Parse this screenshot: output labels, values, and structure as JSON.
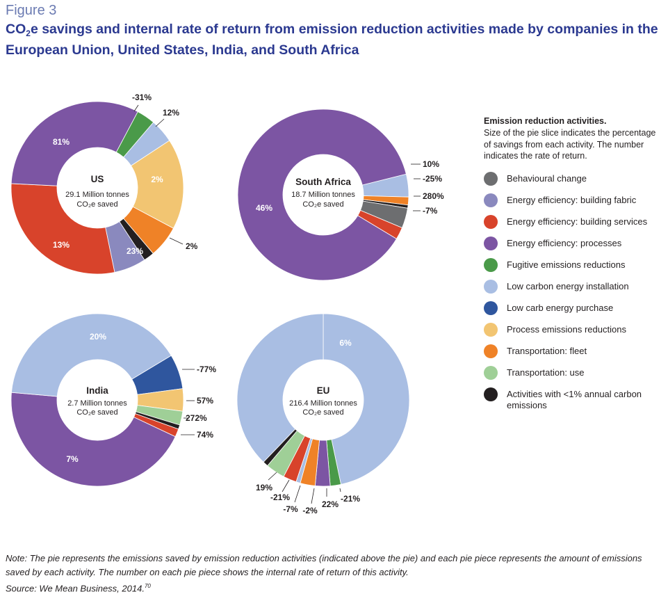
{
  "figure_label": "Figure 3",
  "title": {
    "prefix": "CO",
    "subscript": "2",
    "rest": "e savings and internal rate of return from emission reduction activities made by companies in the European Union, United States, India, and South Africa"
  },
  "legend": {
    "heading": "Emission reduction activities.",
    "description": "Size of the pie slice indicates the percentage of savings from each activity. The number indicates the rate of return.",
    "items": [
      {
        "key": "behavioural",
        "label": "Behavioural change",
        "color": "#6d6e70"
      },
      {
        "key": "building_fabric",
        "label": "Energy efficiency: building fabric",
        "color": "#8a89be"
      },
      {
        "key": "building_services",
        "label": "Energy efficiency: building services",
        "color": "#d8432b"
      },
      {
        "key": "processes",
        "label": "Energy efficiency: processes",
        "color": "#7c55a3"
      },
      {
        "key": "fugitive",
        "label": "Fugitive emissions reductions",
        "color": "#4a9a49"
      },
      {
        "key": "low_carbon_install",
        "label": "Low carbon energy installation",
        "color": "#a9bee3"
      },
      {
        "key": "low_carb_purchase",
        "label": "Low carb energy purchase",
        "color": "#2f569e"
      },
      {
        "key": "process_emissions",
        "label": "Process emissions reductions",
        "color": "#f2c572"
      },
      {
        "key": "fleet",
        "label": "Transportation: fleet",
        "color": "#ef8227"
      },
      {
        "key": "transport_use",
        "label": "Transportation: use",
        "color": "#9fcf97"
      },
      {
        "key": "lt1",
        "label": "Activities with <1% annual carbon emissions",
        "color": "#231f20"
      }
    ]
  },
  "chart_data": [
    {
      "type": "pie",
      "name": "US",
      "center_label": "US",
      "subtitle_line1": "29.1 Million tonnes",
      "subtitle_line2": "CO₂e saved",
      "slices": [
        {
          "category": "fugitive",
          "share": 3.5,
          "irr_label": "-31%"
        },
        {
          "category": "low_carbon_install",
          "share": 4.5,
          "irr_label": "12%"
        },
        {
          "category": "process_emissions",
          "share": 17,
          "irr_label": "2%"
        },
        {
          "category": "fleet",
          "share": 6,
          "irr_label": "2%"
        },
        {
          "category": "lt1",
          "share": 2,
          "irr_label": ""
        },
        {
          "category": "building_fabric",
          "share": 6,
          "irr_label": "23%"
        },
        {
          "category": "building_services",
          "share": 29,
          "irr_label": "13%"
        },
        {
          "category": "processes",
          "share": 32,
          "irr_label": "81%"
        }
      ]
    },
    {
      "type": "pie",
      "name": "South Africa",
      "center_label": "South Africa",
      "subtitle_line1": "18.7 Million tonnes",
      "subtitle_line2": "CO₂e saved",
      "slices": [
        {
          "category": "low_carbon_install",
          "share": 4.3,
          "irr_label": "10%"
        },
        {
          "category": "fleet",
          "share": 1.5,
          "irr_label": "-25%"
        },
        {
          "category": "lt1",
          "share": 0.6,
          "irr_label": ""
        },
        {
          "category": "behavioural",
          "share": 3.8,
          "irr_label": "280%"
        },
        {
          "category": "building_services",
          "share": 2.3,
          "irr_label": "-7%"
        },
        {
          "category": "processes",
          "share": 87.5,
          "irr_label": "46%"
        }
      ]
    },
    {
      "type": "pie",
      "name": "India",
      "center_label": "India",
      "subtitle_line1": "2.7 Million tonnes",
      "subtitle_line2": "CO₂e saved",
      "slices": [
        {
          "category": "low_carb_purchase",
          "share": 6.5,
          "irr_label": "-77%"
        },
        {
          "category": "process_emissions",
          "share": 4.2,
          "irr_label": "57%"
        },
        {
          "category": "transport_use",
          "share": 2.6,
          "irr_label": "272%"
        },
        {
          "category": "lt1",
          "share": 0.8,
          "irr_label": ""
        },
        {
          "category": "building_services",
          "share": 1.5,
          "irr_label": "74%"
        },
        {
          "category": "processes",
          "share": 44.4,
          "irr_label": "7%"
        },
        {
          "category": "low_carbon_install",
          "share": 40,
          "irr_label": "20%"
        }
      ]
    },
    {
      "type": "pie",
      "name": "EU",
      "center_label": "EU",
      "subtitle_line1": "216.4 Million tonnes",
      "subtitle_line2": "CO₂e saved",
      "slices": [
        {
          "category": "low_carbon_install",
          "share": 46.7,
          "irr_label": "6%"
        },
        {
          "category": "fugitive",
          "share": 2,
          "irr_label": "-21%"
        },
        {
          "category": "processes",
          "share": 2.8,
          "irr_label": "22%"
        },
        {
          "category": "fleet",
          "share": 2.8,
          "irr_label": "-2%"
        },
        {
          "category": "low_carbon_install",
          "share": 0.8,
          "irr_label": ""
        },
        {
          "category": "building_services",
          "share": 2.5,
          "irr_label": "-7%"
        },
        {
          "category": "transport_use",
          "share": 3.6,
          "irr_label": "-21%"
        },
        {
          "category": "lt1",
          "share": 1,
          "irr_label": "19%"
        },
        {
          "category": "low_carbon_install",
          "share": 37.8,
          "irr_label": ""
        }
      ]
    }
  ],
  "note": "Note: The pie represents the emissions saved by emission reduction activities (indicated above the pie) and each pie piece represents the amount of emissions saved by each activity. The number on each pie piece shows the internal rate of return of this activity.",
  "source": {
    "text": "Source: We Mean Business, 2014.",
    "sup": "70"
  }
}
